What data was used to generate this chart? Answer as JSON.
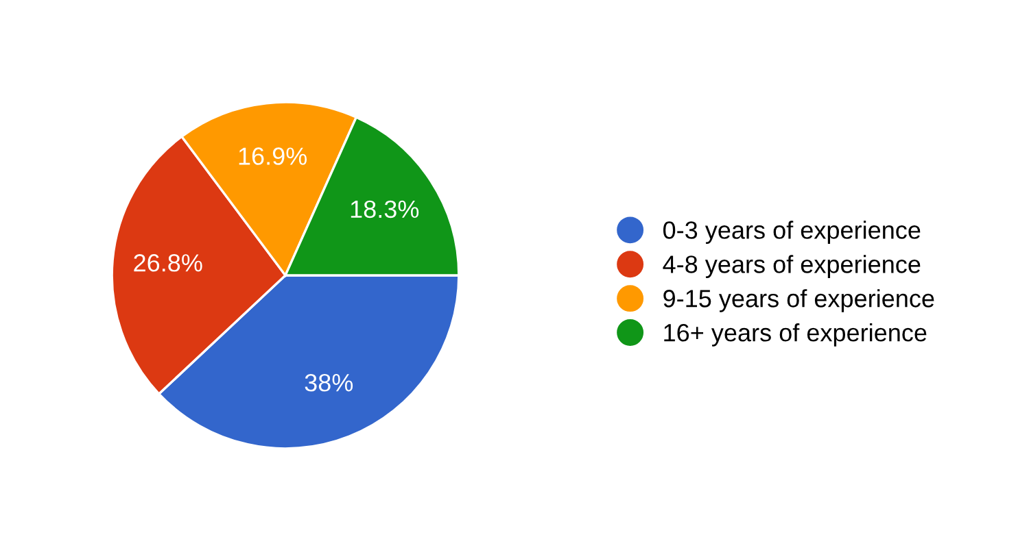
{
  "chart_data": {
    "type": "pie",
    "categories": [
      "0-3 years of experience",
      "4-8 years of experience",
      "9-15 years of experience",
      "16+ years of experience"
    ],
    "values": [
      38,
      26.8,
      16.9,
      18.3
    ],
    "colors": [
      "#3366cc",
      "#dc3912",
      "#ff9900",
      "#109618"
    ],
    "value_labels": [
      "38%",
      "26.8%",
      "16.9%",
      "18.3%"
    ],
    "legend": "right"
  }
}
